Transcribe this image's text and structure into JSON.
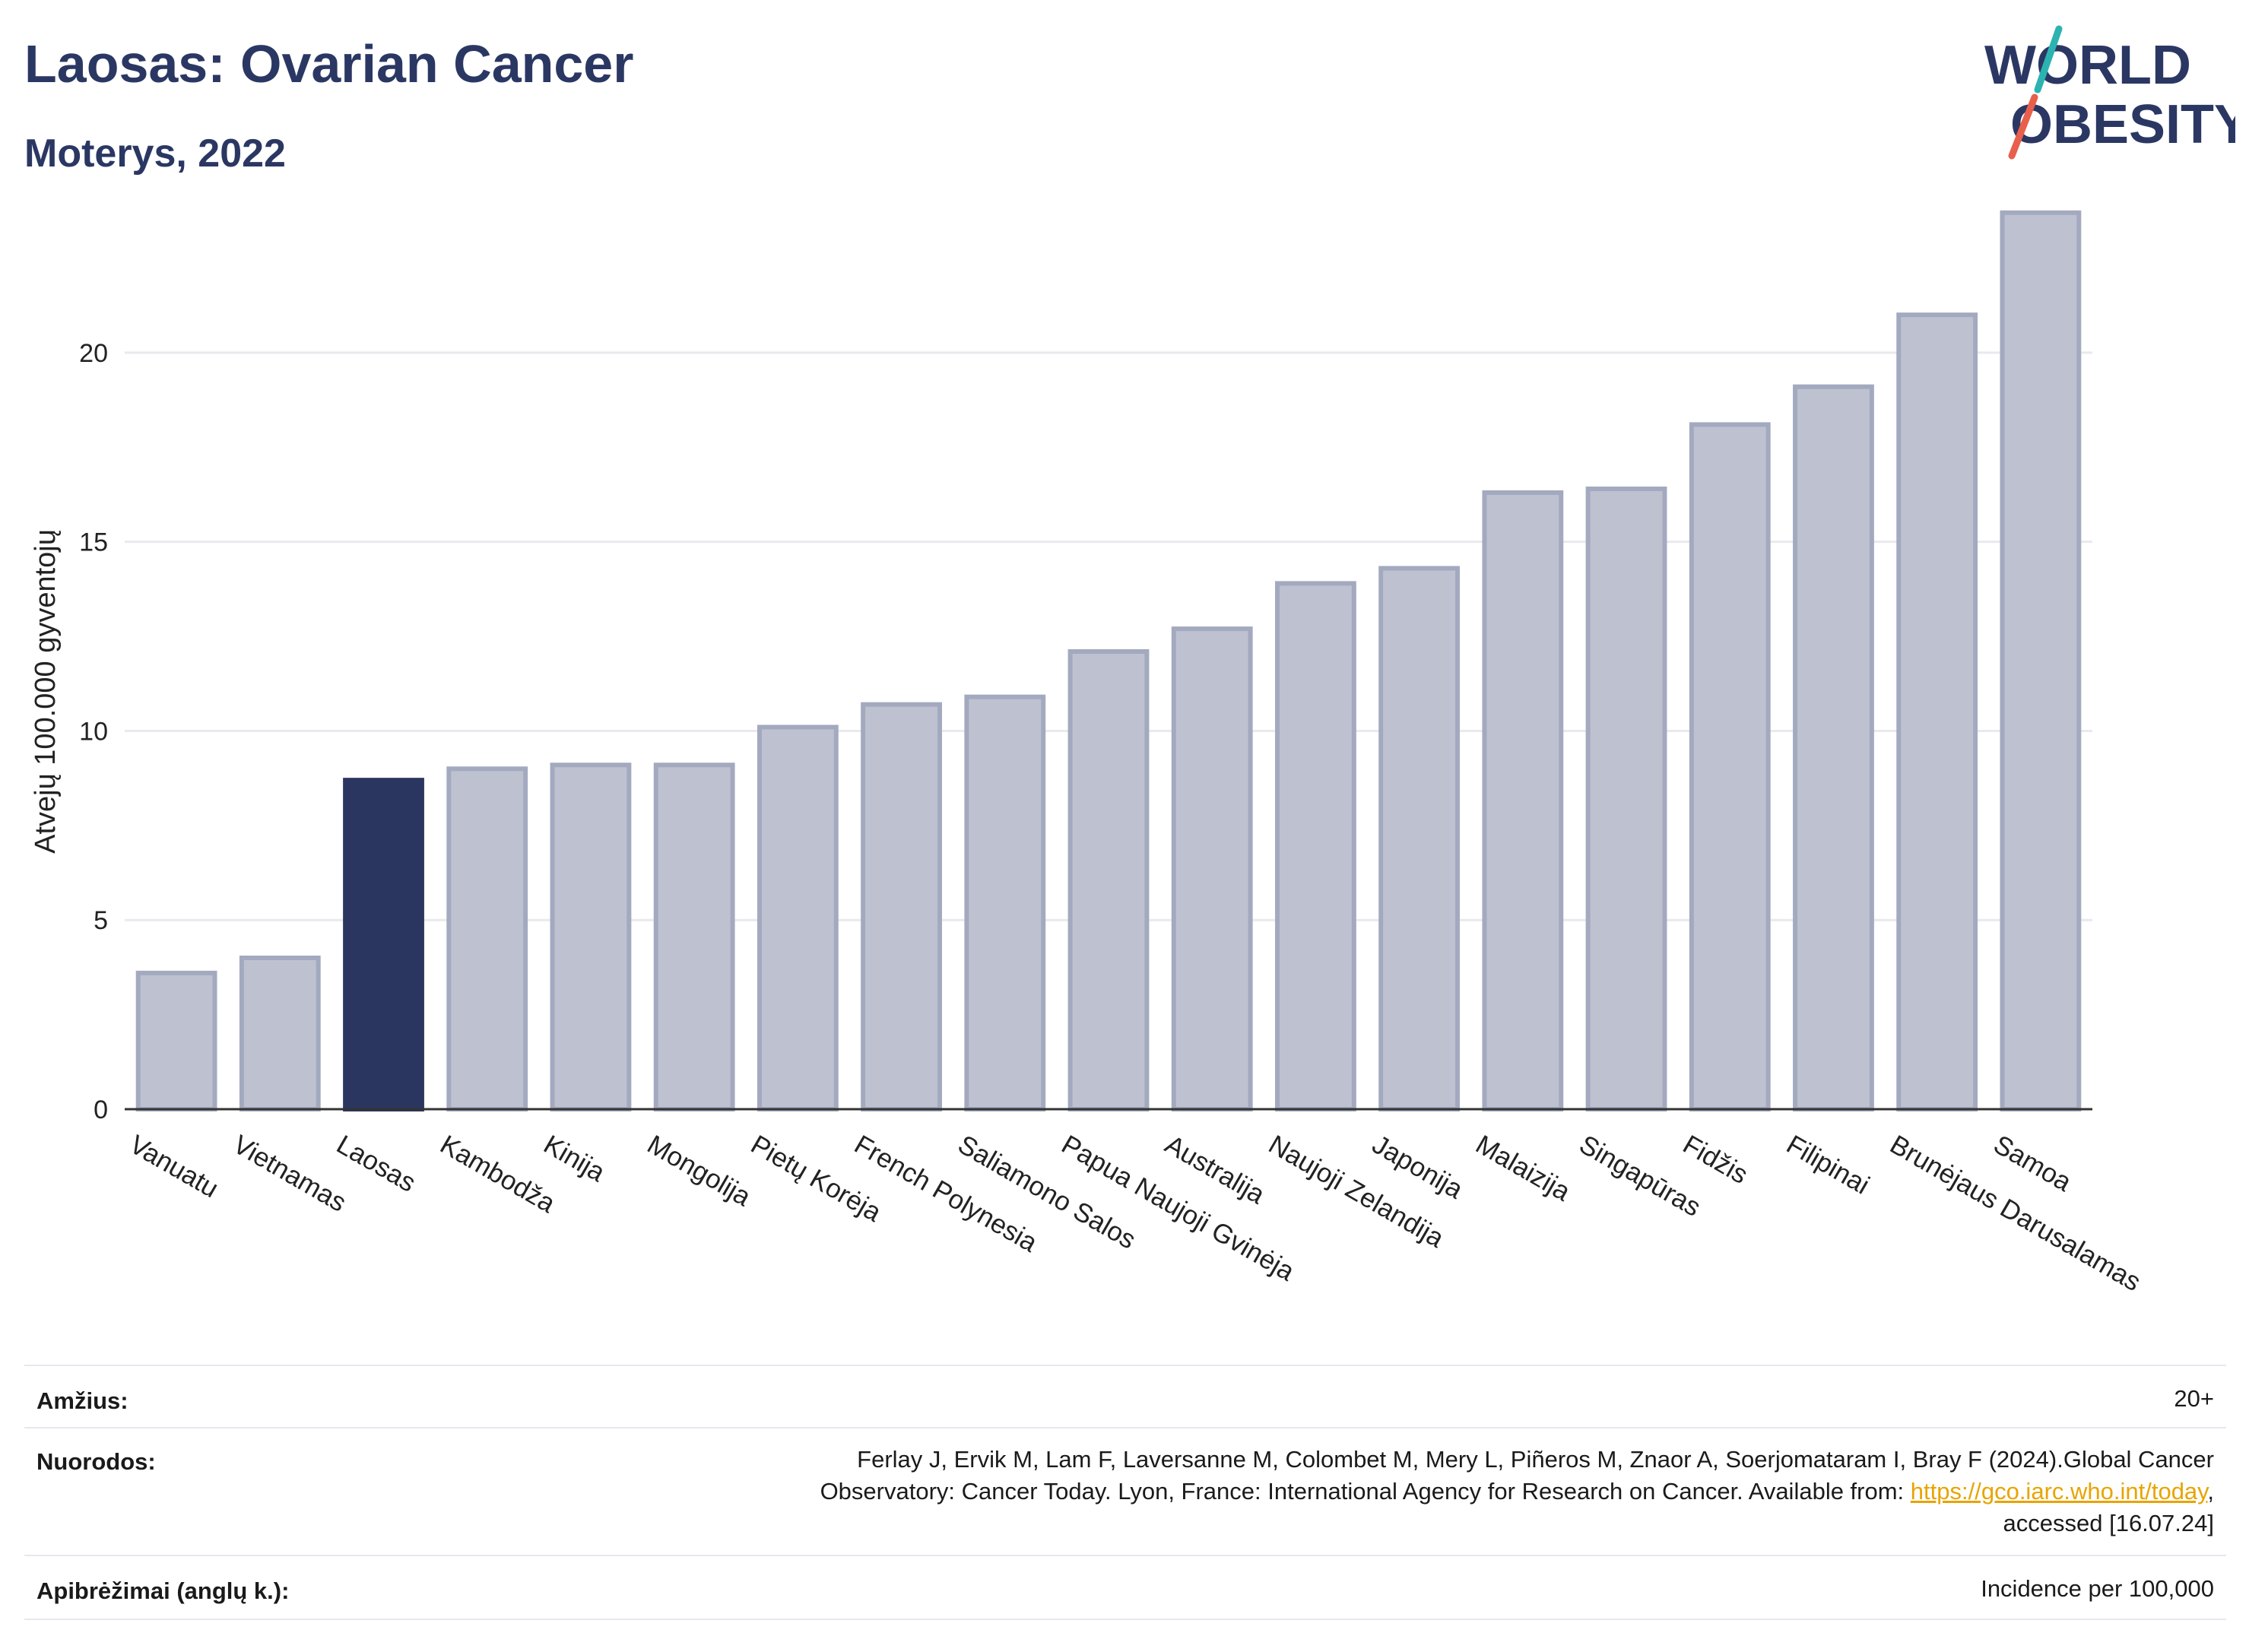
{
  "header": {
    "title": "Laosas: Ovarian Cancer",
    "subtitle": "Moterys, 2022"
  },
  "logo": {
    "line1": "WORLD",
    "line2": "OBESITY",
    "colors": {
      "text": "#2b3763",
      "accent_teal": "#2bb3b1",
      "accent_red": "#e8604c"
    }
  },
  "colors": {
    "bar": "#bec2d0",
    "bar_edge": "#a3a9bf",
    "highlight": "#2b3660",
    "axis": "#333333",
    "grid": "#e9e9ee"
  },
  "chart_data": {
    "type": "bar",
    "title": "Laosas: Ovarian Cancer",
    "subtitle": "Moterys, 2022",
    "ylabel": "Atvejų 100.000 gyventojų",
    "xlabel": "",
    "ylim": [
      0,
      24.5
    ],
    "yticks": [
      0,
      5,
      10,
      15,
      20
    ],
    "grid": true,
    "highlight": "Laosas",
    "categories": [
      "Vanuatu",
      "Vietnamas",
      "Laosas",
      "Kambodža",
      "Kinija",
      "Mongolija",
      "Pietų Korėja",
      "French Polynesia",
      "Saliamono Salos",
      "Papua Naujoji Gvinėja",
      "Australija",
      "Naujoji Zelandija",
      "Japonija",
      "Malaizija",
      "Singapūras",
      "Fidžis",
      "Filipinai",
      "Brunėjaus Darusalamas",
      "Samoa"
    ],
    "values": [
      3.6,
      4.0,
      8.7,
      9.0,
      9.1,
      9.1,
      10.1,
      10.7,
      10.9,
      12.1,
      12.7,
      13.9,
      14.3,
      16.3,
      16.4,
      18.1,
      19.1,
      21.0,
      23.7
    ]
  },
  "info": {
    "age_label": "Amžius:",
    "age_value": "20+",
    "refs_label": "Nuorodos:",
    "refs_line1": "Ferlay J, Ervik M, Lam F, Laversanne M, Colombet M, Mery L, Piñeros M, Znaor A, Soerjomataram I, Bray F (2024).Global Cancer",
    "refs_line2_pre": "Observatory: Cancer Today. Lyon, France: International Agency for Research on Cancer. Available from: ",
    "refs_link": "https://gco.iarc.who.int/today",
    "refs_line2_post": ",",
    "refs_line3": "accessed [16.07.24]",
    "defs_label": "Apibrėžimai (anglų k.):",
    "defs_value": "Incidence per 100,000"
  }
}
